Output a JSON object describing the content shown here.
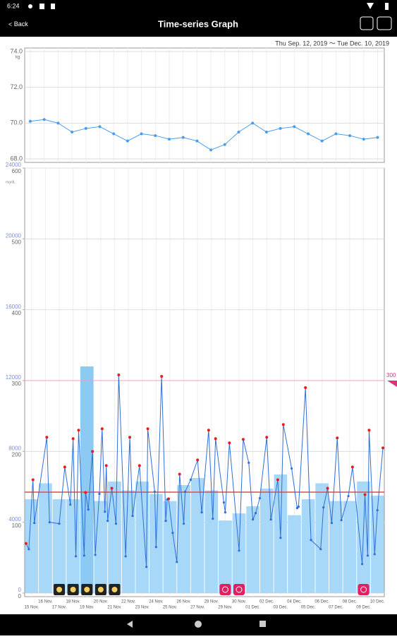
{
  "status_bar": {
    "time": "6:24"
  },
  "app_bar": {
    "back": "Back",
    "title": "Time-series Graph"
  },
  "date_range": "Thu Sep. 12, 2019 〜 Tue Dec. 10, 2019",
  "chart_data": [
    {
      "type": "line",
      "y_label": "kg",
      "color": "#4a9ee8",
      "categories": [
        "15 Nov.",
        "16 Nov.",
        "17 Nov.",
        "18 Nov.",
        "19 Nov.",
        "20 Nov.",
        "21 Nov.",
        "22 Nov.",
        "23 Nov.",
        "24 Nov.",
        "25 Nov.",
        "26 Nov.",
        "27 Nov.",
        "28 Nov.",
        "29 Nov.",
        "30 Nov.",
        "01 Dec.",
        "02 Dec.",
        "03 Dec.",
        "04 Dec.",
        "05 Dec.",
        "06 Dec.",
        "07 Dec.",
        "08 Dec.",
        "09 Dec.",
        "10 Dec."
      ],
      "values": [
        70.1,
        70.2,
        70.0,
        69.5,
        69.7,
        69.8,
        69.4,
        69.0,
        69.4,
        69.3,
        69.1,
        69.2,
        69.0,
        68.5,
        68.8,
        69.5,
        70.0,
        69.5,
        69.7,
        69.8,
        69.4,
        69.0,
        69.4,
        69.3,
        69.1,
        69.2
      ],
      "ylim": [
        68,
        74
      ],
      "yticks": [
        {
          "value": 68,
          "label": "68.0"
        },
        {
          "value": 70,
          "label": "70.0"
        },
        {
          "value": 72,
          "label": "72.0"
        },
        {
          "value": 74,
          "label": "74.0"
        }
      ],
      "grid": true
    },
    {
      "type": "combo",
      "y2_label": "mg/dL",
      "categories": [
        "15 Nov.",
        "16 Nov.",
        "17 Nov.",
        "18 Nov.",
        "19 Nov.",
        "20 Nov.",
        "21 Nov.",
        "22 Nov.",
        "23 Nov.",
        "24 Nov.",
        "25 Nov.",
        "26 Nov.",
        "27 Nov.",
        "28 Nov.",
        "29 Nov.",
        "30 Nov.",
        "01 Dec.",
        "02 Dec.",
        "03 Dec.",
        "04 Dec.",
        "05 Dec.",
        "06 Dec.",
        "07 Dec.",
        "08 Dec.",
        "09 Dec.",
        "10 Dec."
      ],
      "xlim": [
        -0.5,
        25.5
      ],
      "bars": {
        "color": "#a8d8f8",
        "highlight_color": "#8ccaf4",
        "values": [
          5300,
          6200,
          5300,
          5300,
          12800,
          5200,
          6300,
          5800,
          6300,
          5600,
          5200,
          6100,
          6500,
          5800,
          4100,
          4500,
          4900,
          5900,
          6700,
          4400,
          5300,
          6200,
          5200,
          5200,
          6300,
          5500
        ]
      },
      "line": {
        "axis": "y2",
        "color": "#2f6fd8",
        "peak_color": "#e02020",
        "x": [
          -0.4,
          -0.2,
          0.1,
          0.2,
          1.1,
          1.3,
          2.0,
          2.4,
          2.8,
          3.0,
          3.2,
          3.4,
          3.8,
          3.9,
          4.1,
          4.4,
          4.6,
          4.9,
          5.1,
          5.3,
          5.4,
          5.5,
          5.8,
          6.1,
          6.3,
          6.8,
          7.1,
          7.3,
          7.8,
          8.3,
          8.4,
          8.9,
          9.0,
          9.4,
          9.7,
          9.8,
          9.9,
          10.2,
          10.5,
          10.7,
          11.0,
          11.1,
          11.5,
          12.0,
          12.3,
          12.8,
          13.1,
          13.3,
          13.9,
          14.0,
          14.3,
          15.0,
          15.3,
          15.7,
          16.0,
          16.2,
          16.5,
          17.0,
          17.3,
          17.8,
          18.0,
          18.2,
          18.8,
          19.2,
          19.3,
          19.8,
          20.2,
          20.9,
          21.1,
          21.4,
          21.7,
          22.1,
          22.4,
          22.9,
          23.2,
          23.9,
          24.1,
          24.3,
          24.4,
          24.8,
          25.0,
          25.4
        ],
        "values": [
          70,
          62,
          160,
          99,
          220,
          100,
          98,
          178,
          125,
          218,
          52,
          230,
          53,
          142,
          118,
          200,
          54,
          140,
          232,
          115,
          180,
          102,
          148,
          98,
          308,
          52,
          220,
          109,
          180,
          37,
          232,
          143,
          65,
          306,
          102,
          132,
          133,
          85,
          44,
          168,
          98,
          143,
          160,
          188,
          114,
          230,
          105,
          218,
          128,
          114,
          212,
          60,
          217,
          184,
          104,
          113,
          134,
          220,
          104,
          160,
          78,
          238,
          176,
          120,
          122,
          290,
          75,
          62,
          121,
          148,
          99,
          219,
          103,
          137,
          178,
          41,
          139,
          53,
          230,
          55,
          117,
          205
        ]
      },
      "ylim": [
        0,
        24000
      ],
      "yticks": [
        0,
        4000,
        8000,
        12000,
        16000,
        20000,
        24000
      ],
      "y2lim": [
        0,
        600
      ],
      "y2ticks": [
        0,
        100,
        200,
        300,
        400,
        500,
        600
      ],
      "limit_line": {
        "value": 300,
        "color": "#f0a0b8"
      },
      "average_line": {
        "value": 5700,
        "color": "#d85050"
      },
      "moon_markers": [
        2,
        3,
        4,
        5,
        6
      ],
      "alert_markers": [
        14,
        15,
        24
      ],
      "grid": true
    }
  ]
}
